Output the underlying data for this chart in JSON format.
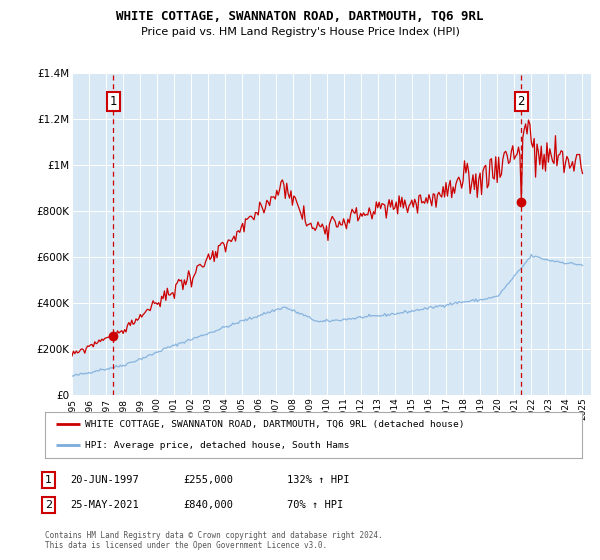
{
  "title": "WHITE COTTAGE, SWANNATON ROAD, DARTMOUTH, TQ6 9RL",
  "subtitle": "Price paid vs. HM Land Registry's House Price Index (HPI)",
  "red_label": "WHITE COTTAGE, SWANNATON ROAD, DARTMOUTH, TQ6 9RL (detached house)",
  "blue_label": "HPI: Average price, detached house, South Hams",
  "sale1_date": "20-JUN-1997",
  "sale1_price": 255000,
  "sale1_year": 1997.458,
  "sale1_hpi": "132% ↑ HPI",
  "sale2_date": "25-MAY-2021",
  "sale2_price": 840000,
  "sale2_year": 2021.375,
  "sale2_hpi": "70% ↑ HPI",
  "footer": "Contains HM Land Registry data © Crown copyright and database right 2024.\nThis data is licensed under the Open Government Licence v3.0.",
  "ylim": [
    0,
    1400000
  ],
  "yticks": [
    0,
    200000,
    400000,
    600000,
    800000,
    1000000,
    1200000,
    1400000
  ],
  "ytick_labels": [
    "£0",
    "£200K",
    "£400K",
    "£600K",
    "£800K",
    "£1M",
    "£1.2M",
    "£1.4M"
  ],
  "xlim_start": 1995,
  "xlim_end": 2025.5,
  "plot_bg": "#d8e8f5",
  "grid_color": "#ffffff",
  "red_color": "#cc0000",
  "blue_color": "#7aabda",
  "dashed_color": "#cc0000",
  "annotation_box_color": "#cc0000",
  "legend_border_color": "#aaaaaa"
}
